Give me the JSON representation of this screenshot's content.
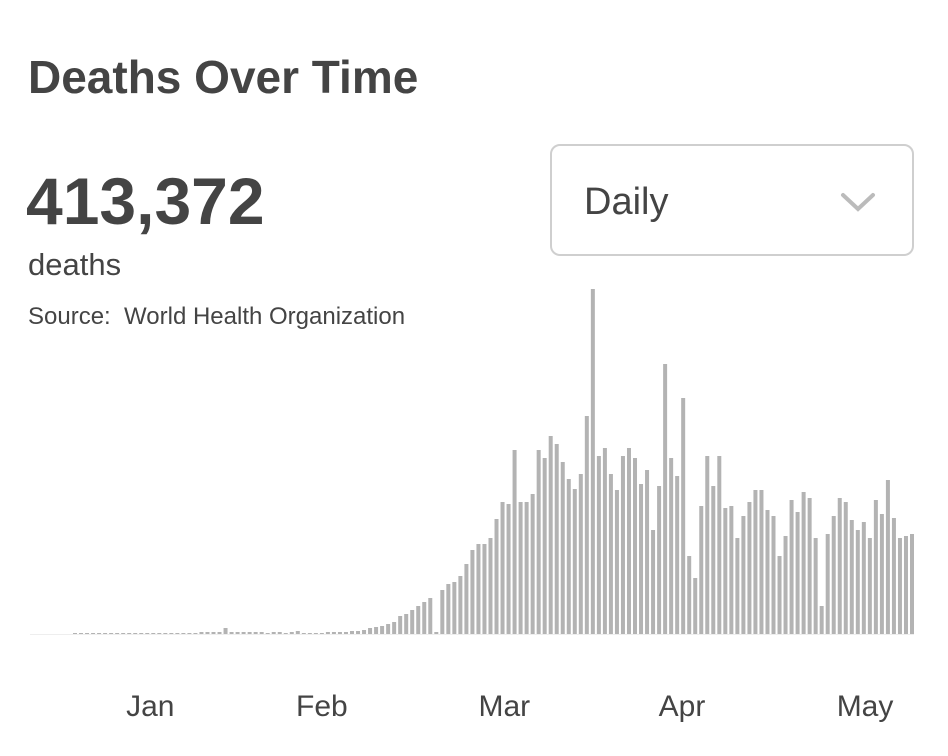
{
  "header": {
    "title": "Deaths Over Time"
  },
  "total": {
    "value": "413,372",
    "unit": "deaths"
  },
  "source": "Source:  World Health Organization",
  "dropdown": {
    "selected": "Daily"
  },
  "chart_data": {
    "type": "bar",
    "color": "#b3b3b3",
    "values": [
      0,
      0,
      0,
      0,
      0,
      0,
      0,
      0,
      0,
      0,
      0,
      0,
      0,
      0,
      30,
      30,
      30,
      30,
      30,
      30,
      30,
      60,
      60,
      60,
      60,
      180,
      60,
      60,
      60,
      60,
      60,
      60,
      30,
      60,
      60,
      30,
      60,
      90,
      30,
      30,
      30,
      30,
      60,
      60,
      60,
      60,
      90,
      90,
      120,
      180,
      210,
      240,
      300,
      360,
      540,
      600,
      720,
      840,
      960,
      1080,
      60,
      1320,
      1500,
      1560,
      1740,
      2100,
      2520,
      2700,
      2700,
      2880,
      3450,
      3960,
      3900,
      5520,
      3960,
      3960,
      4200,
      5520,
      5280,
      5940,
      5700,
      5160,
      4650,
      4350,
      4800,
      6540,
      10350,
      5340,
      5580,
      4800,
      4320,
      5340,
      5580,
      5280,
      4500,
      4920,
      3120,
      4440,
      8100,
      5280,
      4740,
      7080,
      2340,
      1680,
      3840,
      5340,
      4440,
      5340,
      3780,
      3840,
      2880,
      3540,
      3960,
      4320,
      4320,
      3720,
      3540,
      2340,
      2940,
      4020,
      3660,
      4260,
      4080,
      2880,
      840,
      3000,
      3540,
      4080,
      3960,
      3420,
      3120,
      3360,
      2880,
      4020,
      3600,
      4620,
      3480,
      2880,
      2940,
      3000
    ],
    "xticks": [
      {
        "value": 12.5,
        "label": "Jan"
      },
      {
        "value": 41,
        "label": "Feb"
      },
      {
        "value": 71.3,
        "label": "Mar"
      },
      {
        "value": 100.8,
        "label": "Apr"
      },
      {
        "value": 131.2,
        "label": "May"
      }
    ]
  }
}
